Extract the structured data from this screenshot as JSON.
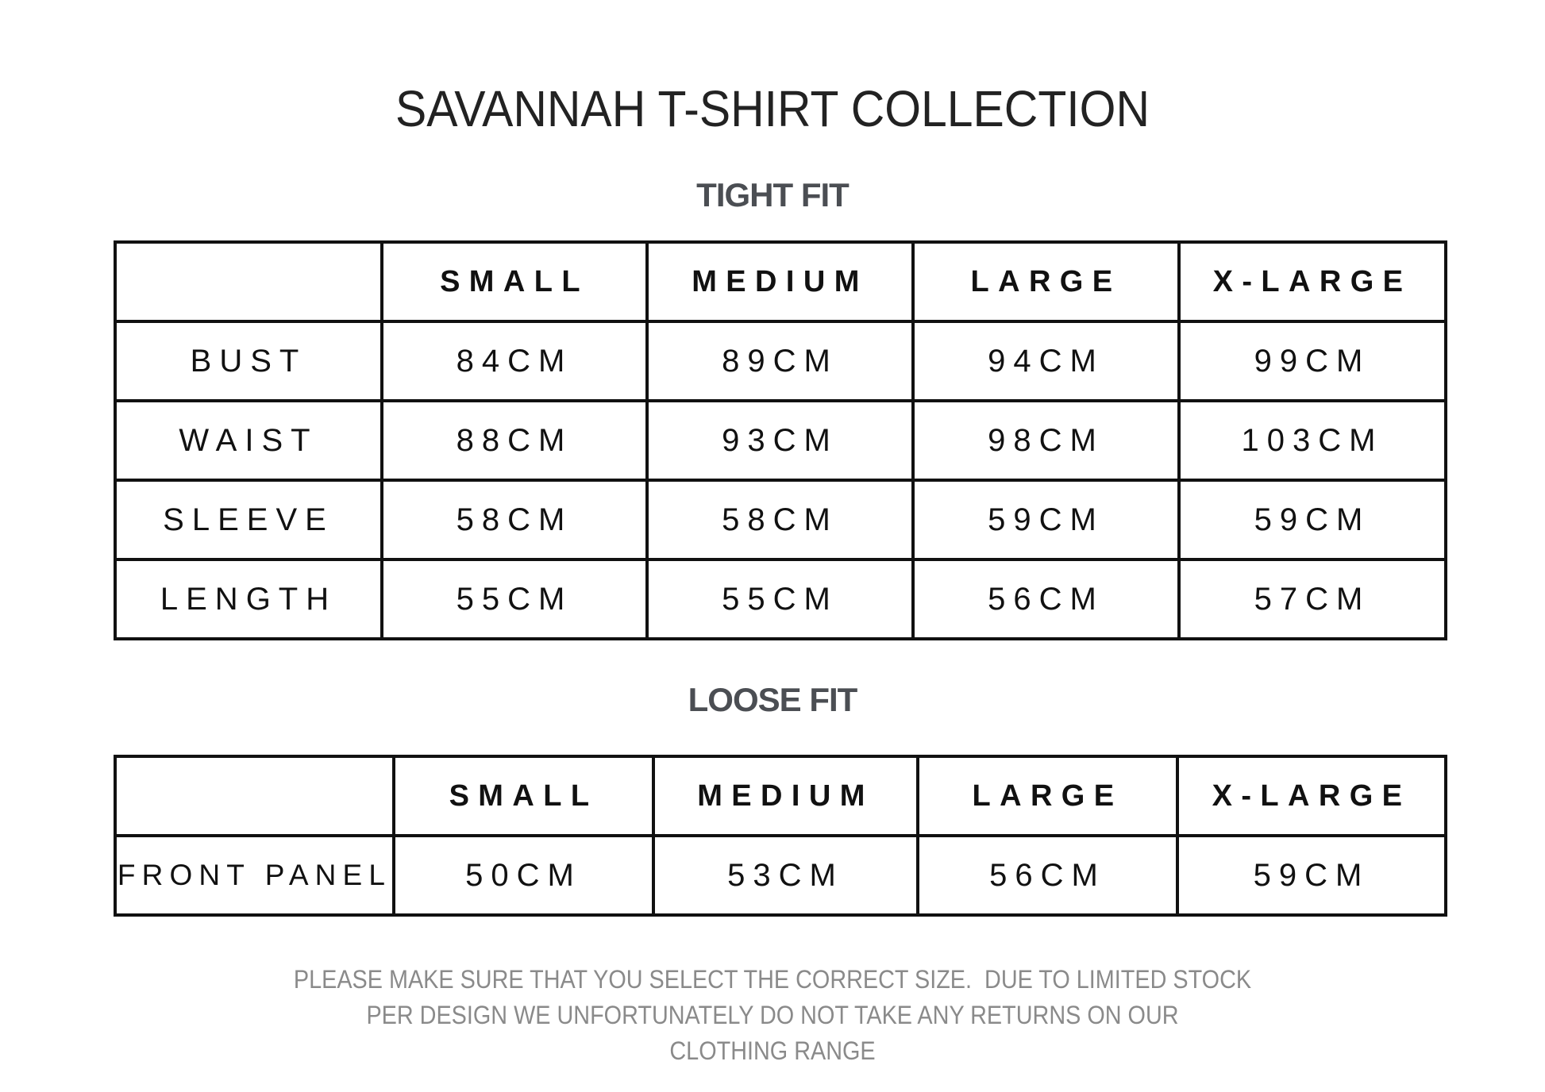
{
  "title": "SAVANNAH T-SHIRT COLLECTION",
  "tight_fit": {
    "heading": "TIGHT FIT",
    "columns": [
      "",
      "SMALL",
      "MEDIUM",
      "LARGE",
      "X-LARGE"
    ],
    "rows": [
      {
        "label": "BUST",
        "values": [
          "84CM",
          "89CM",
          "94CM",
          "99CM"
        ]
      },
      {
        "label": "WAIST",
        "values": [
          "88CM",
          "93CM",
          "98CM",
          "103CM"
        ]
      },
      {
        "label": "SLEEVE",
        "values": [
          "58CM",
          "58CM",
          "59CM",
          "59CM"
        ]
      },
      {
        "label": "LENGTH",
        "values": [
          "55CM",
          "55CM",
          "56CM",
          "57CM"
        ]
      }
    ]
  },
  "loose_fit": {
    "heading": "LOOSE FIT",
    "columns": [
      "",
      "SMALL",
      "MEDIUM",
      "LARGE",
      "X-LARGE"
    ],
    "rows": [
      {
        "label": "FRONT PANEL",
        "values": [
          "50CM",
          "53CM",
          "56CM",
          "59CM"
        ]
      }
    ]
  },
  "footer": {
    "lines": [
      "PLEASE MAKE SURE THAT YOU SELECT THE CORRECT SIZE.  DUE TO LIMITED STOCK",
      "PER DESIGN WE UNFORTUNATELY DO NOT TAKE ANY RETURNS ON OUR",
      "CLOTHING RANGE"
    ]
  },
  "colors": {
    "heading_gray": "#4b4e53",
    "footer_gray": "#8a8a8a",
    "border": "#111111"
  }
}
